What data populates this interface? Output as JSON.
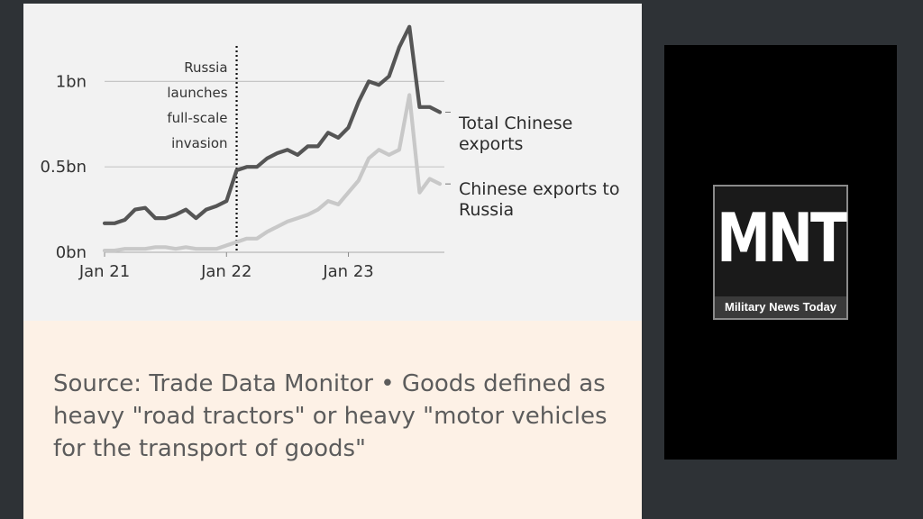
{
  "chart_data": {
    "type": "line",
    "x": [
      "2021-01",
      "2021-02",
      "2021-03",
      "2021-04",
      "2021-05",
      "2021-06",
      "2021-07",
      "2021-08",
      "2021-09",
      "2021-10",
      "2021-11",
      "2021-12",
      "2022-01",
      "2022-02",
      "2022-03",
      "2022-04",
      "2022-05",
      "2022-06",
      "2022-07",
      "2022-08",
      "2022-09",
      "2022-10",
      "2022-11",
      "2022-12",
      "2023-01",
      "2023-02",
      "2023-03",
      "2023-04",
      "2023-05",
      "2023-06",
      "2023-07",
      "2023-08",
      "2023-09",
      "2023-10"
    ],
    "xlim": [
      "2021-01",
      "2023-10"
    ],
    "x_tick_labels": [
      {
        "x": "2021-01",
        "label": "Jan 21"
      },
      {
        "x": "2022-01",
        "label": "Jan 22"
      },
      {
        "x": "2023-01",
        "label": "Jan 23"
      }
    ],
    "ylim": [
      0,
      1.35
    ],
    "y_ticks": [
      {
        "y": 0,
        "label": "0bn"
      },
      {
        "y": 0.5,
        "label": "0.5bn"
      },
      {
        "y": 1,
        "label": "1bn"
      }
    ],
    "grid": "horizontal",
    "series": [
      {
        "name": "Total Chinese exports",
        "color": "#555555",
        "values": [
          0.17,
          0.17,
          0.19,
          0.25,
          0.26,
          0.2,
          0.2,
          0.22,
          0.25,
          0.2,
          0.25,
          0.27,
          0.3,
          0.48,
          0.5,
          0.5,
          0.55,
          0.58,
          0.6,
          0.57,
          0.62,
          0.62,
          0.7,
          0.67,
          0.73,
          0.88,
          1.0,
          0.98,
          1.03,
          1.2,
          1.32,
          0.85,
          0.85,
          0.82
        ]
      },
      {
        "name": "Chinese exports to Russia",
        "color": "#c8c8c8",
        "values": [
          0.01,
          0.01,
          0.02,
          0.02,
          0.02,
          0.03,
          0.03,
          0.02,
          0.03,
          0.02,
          0.02,
          0.02,
          0.04,
          0.06,
          0.08,
          0.08,
          0.12,
          0.15,
          0.18,
          0.2,
          0.22,
          0.25,
          0.3,
          0.28,
          0.35,
          0.42,
          0.55,
          0.6,
          0.57,
          0.6,
          0.92,
          0.35,
          0.43,
          0.4
        ]
      }
    ],
    "annotation": {
      "x": "2022-02",
      "lines": [
        "Russia",
        "launches",
        "full-scale",
        "invasion"
      ]
    },
    "series_labels": [
      [
        "Total Chinese",
        "exports"
      ],
      [
        "Chinese exports to",
        "Russia"
      ]
    ]
  },
  "source": {
    "text": "Source: Trade Data Monitor • Goods defined as heavy \"road tractors\" or heavy \"motor vehicles for the transport of goods\""
  },
  "logo": {
    "mark": "MNT",
    "subtitle": "Military News Today"
  }
}
